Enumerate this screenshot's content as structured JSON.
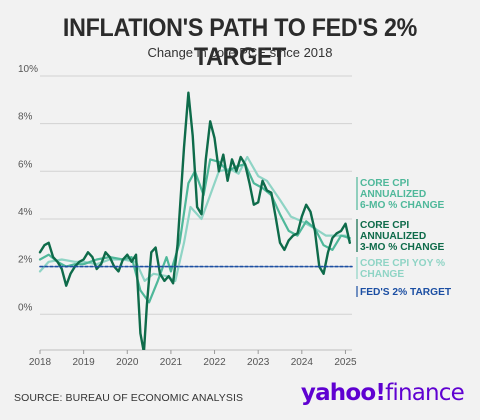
{
  "title": "INFLATION'S PATH TO FED'S 2% TARGET",
  "subtitle": "Change in core PCE since 2018",
  "source": "SOURCE: BUREAU OF ECONOMIC ANALYSIS",
  "logo": {
    "part1": "yahoo!",
    "part2": "finance"
  },
  "colors": {
    "cpi_6mo": "#4fb89a",
    "cpi_3mo": "#0e6b4a",
    "cpi_yoy": "#8fd4c5",
    "target": "#1c4fa3",
    "brand": "#5f01d1"
  },
  "chart_data": {
    "type": "line",
    "x_unit": "year",
    "xlim": [
      2018,
      2025.15
    ],
    "ylim": [
      -1.5,
      10
    ],
    "yticks": [
      0,
      2,
      4,
      6,
      8,
      10
    ],
    "ytick_labels": [
      "0%",
      "2%",
      "4%",
      "6%",
      "8%",
      "10%"
    ],
    "xticks": [
      2018,
      2019,
      2020,
      2021,
      2022,
      2023,
      2024,
      2025
    ],
    "xtick_labels": [
      "2018",
      "2019",
      "2020",
      "2021",
      "2022",
      "2023",
      "2024",
      "2025"
    ],
    "grid": "horizontal",
    "series": [
      {
        "name": "CORE CPI YOY % CHANGE",
        "key": "cpi_yoy",
        "values": [
          [
            2018.0,
            1.8
          ],
          [
            2018.2,
            2.2
          ],
          [
            2018.5,
            2.3
          ],
          [
            2018.8,
            2.2
          ],
          [
            2019.0,
            2.2
          ],
          [
            2019.3,
            2.1
          ],
          [
            2019.6,
            2.3
          ],
          [
            2019.9,
            2.3
          ],
          [
            2020.2,
            2.2
          ],
          [
            2020.4,
            1.4
          ],
          [
            2020.6,
            1.7
          ],
          [
            2020.9,
            1.6
          ],
          [
            2021.1,
            1.4
          ],
          [
            2021.3,
            3.0
          ],
          [
            2021.45,
            4.5
          ],
          [
            2021.7,
            4.0
          ],
          [
            2021.9,
            5.0
          ],
          [
            2022.1,
            6.0
          ],
          [
            2022.35,
            6.1
          ],
          [
            2022.55,
            5.9
          ],
          [
            2022.75,
            6.6
          ],
          [
            2023.0,
            5.8
          ],
          [
            2023.2,
            5.6
          ],
          [
            2023.5,
            4.8
          ],
          [
            2023.75,
            4.1
          ],
          [
            2024.0,
            3.9
          ],
          [
            2024.3,
            3.6
          ],
          [
            2024.55,
            3.3
          ],
          [
            2024.8,
            3.3
          ],
          [
            2025.0,
            3.3
          ],
          [
            2025.1,
            3.1
          ]
        ]
      },
      {
        "name": "CORE CPI ANNUALIZED 6-MO % CHANGE",
        "key": "cpi_6mo",
        "values": [
          [
            2018.0,
            2.3
          ],
          [
            2018.2,
            2.5
          ],
          [
            2018.4,
            2.2
          ],
          [
            2018.6,
            2.0
          ],
          [
            2018.8,
            2.1
          ],
          [
            2019.0,
            2.1
          ],
          [
            2019.3,
            2.3
          ],
          [
            2019.6,
            2.4
          ],
          [
            2019.9,
            2.3
          ],
          [
            2020.1,
            2.4
          ],
          [
            2020.3,
            1.0
          ],
          [
            2020.5,
            0.5
          ],
          [
            2020.7,
            1.4
          ],
          [
            2020.9,
            2.4
          ],
          [
            2021.0,
            1.8
          ],
          [
            2021.2,
            3.0
          ],
          [
            2021.4,
            5.5
          ],
          [
            2021.55,
            6.0
          ],
          [
            2021.75,
            5.0
          ],
          [
            2021.9,
            6.5
          ],
          [
            2022.1,
            6.4
          ],
          [
            2022.3,
            6.0
          ],
          [
            2022.5,
            6.2
          ],
          [
            2022.7,
            6.3
          ],
          [
            2022.9,
            5.5
          ],
          [
            2023.1,
            5.3
          ],
          [
            2023.3,
            5.0
          ],
          [
            2023.5,
            4.2
          ],
          [
            2023.7,
            3.5
          ],
          [
            2023.9,
            3.3
          ],
          [
            2024.1,
            3.9
          ],
          [
            2024.3,
            3.6
          ],
          [
            2024.5,
            2.9
          ],
          [
            2024.7,
            2.7
          ],
          [
            2024.9,
            3.3
          ],
          [
            2025.1,
            3.2
          ]
        ]
      },
      {
        "name": "CORE CPI ANNUALIZED 3-MO % CHANGE",
        "key": "cpi_3mo",
        "values": [
          [
            2018.0,
            2.6
          ],
          [
            2018.1,
            2.9
          ],
          [
            2018.2,
            3.0
          ],
          [
            2018.3,
            2.4
          ],
          [
            2018.4,
            2.2
          ],
          [
            2018.5,
            1.9
          ],
          [
            2018.6,
            1.2
          ],
          [
            2018.7,
            1.7
          ],
          [
            2018.8,
            2.0
          ],
          [
            2018.9,
            2.2
          ],
          [
            2019.0,
            2.3
          ],
          [
            2019.1,
            2.6
          ],
          [
            2019.2,
            2.4
          ],
          [
            2019.3,
            1.9
          ],
          [
            2019.4,
            2.1
          ],
          [
            2019.5,
            2.6
          ],
          [
            2019.6,
            2.4
          ],
          [
            2019.7,
            2.0
          ],
          [
            2019.8,
            1.8
          ],
          [
            2019.9,
            2.3
          ],
          [
            2020.0,
            2.5
          ],
          [
            2020.1,
            2.2
          ],
          [
            2020.2,
            2.5
          ],
          [
            2020.3,
            -0.8
          ],
          [
            2020.38,
            -1.6
          ],
          [
            2020.45,
            0.4
          ],
          [
            2020.55,
            2.6
          ],
          [
            2020.65,
            2.8
          ],
          [
            2020.75,
            1.7
          ],
          [
            2020.85,
            1.4
          ],
          [
            2020.95,
            1.6
          ],
          [
            2021.05,
            1.3
          ],
          [
            2021.15,
            2.9
          ],
          [
            2021.3,
            7.0
          ],
          [
            2021.4,
            9.3
          ],
          [
            2021.5,
            7.5
          ],
          [
            2021.6,
            4.5
          ],
          [
            2021.7,
            4.2
          ],
          [
            2021.8,
            6.5
          ],
          [
            2021.9,
            8.1
          ],
          [
            2022.0,
            7.4
          ],
          [
            2022.1,
            6.0
          ],
          [
            2022.2,
            6.7
          ],
          [
            2022.3,
            5.6
          ],
          [
            2022.4,
            6.5
          ],
          [
            2022.5,
            6.0
          ],
          [
            2022.6,
            6.6
          ],
          [
            2022.7,
            6.3
          ],
          [
            2022.8,
            5.5
          ],
          [
            2022.9,
            4.6
          ],
          [
            2023.0,
            4.7
          ],
          [
            2023.1,
            5.6
          ],
          [
            2023.2,
            5.2
          ],
          [
            2023.3,
            5.1
          ],
          [
            2023.4,
            4.1
          ],
          [
            2023.5,
            3.0
          ],
          [
            2023.6,
            2.7
          ],
          [
            2023.7,
            3.1
          ],
          [
            2023.8,
            3.3
          ],
          [
            2023.9,
            3.4
          ],
          [
            2024.0,
            4.1
          ],
          [
            2024.1,
            4.6
          ],
          [
            2024.2,
            4.3
          ],
          [
            2024.3,
            3.5
          ],
          [
            2024.4,
            2.0
          ],
          [
            2024.5,
            1.7
          ],
          [
            2024.6,
            2.6
          ],
          [
            2024.7,
            3.2
          ],
          [
            2024.8,
            3.4
          ],
          [
            2024.9,
            3.5
          ],
          [
            2025.0,
            3.8
          ],
          [
            2025.1,
            3.0
          ]
        ]
      },
      {
        "name": "FED'S 2% TARGET",
        "key": "target",
        "dashed": true,
        "values": [
          [
            2018.0,
            2.0
          ],
          [
            2025.15,
            2.0
          ]
        ]
      }
    ],
    "legend_position": "right",
    "legend": [
      {
        "key": "cpi_6mo",
        "lines": [
          "CORE CPI",
          "ANNUALIZED",
          "6-MO % CHANGE"
        ]
      },
      {
        "key": "cpi_3mo",
        "lines": [
          "CORE CPI",
          "ANNUALIZED",
          "3-MO % CHANGE"
        ]
      },
      {
        "key": "cpi_yoy",
        "lines": [
          "CORE CPI YOY %",
          "CHANGE"
        ]
      },
      {
        "key": "target",
        "lines": [
          "FED'S 2% TARGET"
        ]
      }
    ]
  }
}
